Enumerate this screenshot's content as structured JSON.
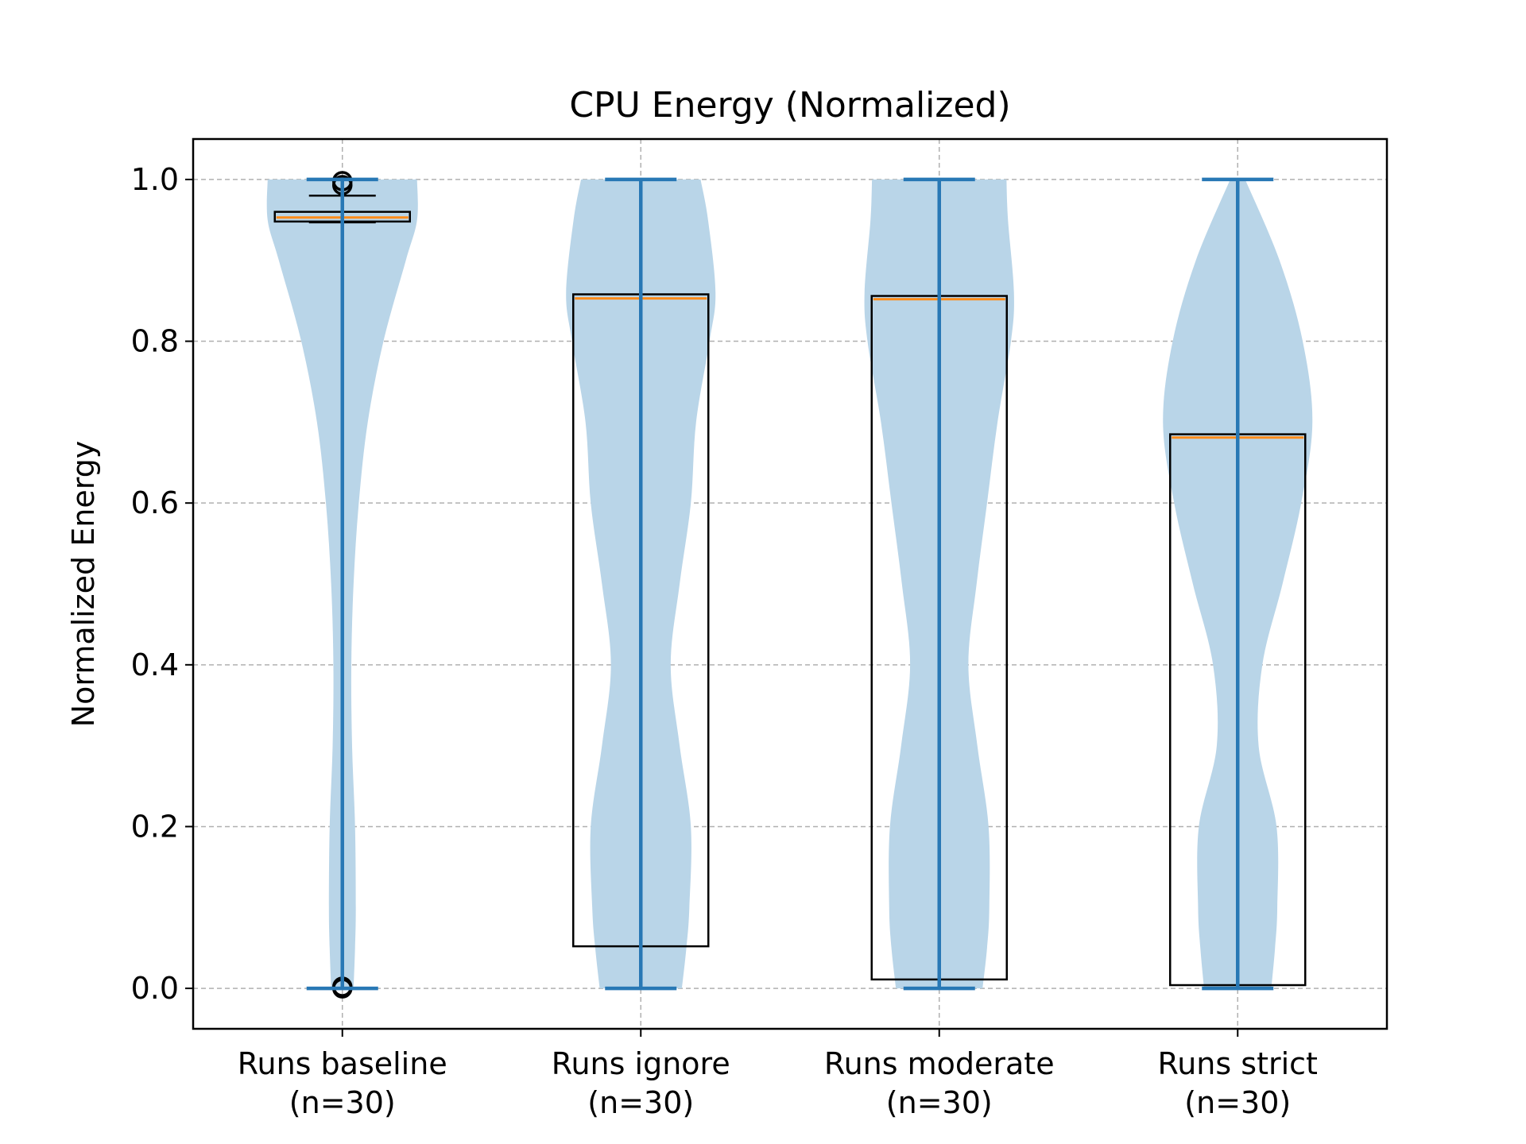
{
  "chart_data": {
    "type": "violin",
    "title": "CPU Energy (Normalized)",
    "xlabel": "",
    "ylabel": "Normalized Energy",
    "ylim": [
      -0.05,
      1.05
    ],
    "yticks": [
      0.0,
      0.2,
      0.4,
      0.6,
      0.8,
      1.0
    ],
    "ytick_labels": [
      "0.0",
      "0.2",
      "0.4",
      "0.6",
      "0.8",
      "1.0"
    ],
    "grid": true,
    "categories": [
      {
        "line1": "Runs baseline",
        "line2": "(n=30)"
      },
      {
        "line1": "Runs ignore",
        "line2": "(n=30)"
      },
      {
        "line1": "Runs moderate",
        "line2": "(n=30)"
      },
      {
        "line1": "Runs strict",
        "line2": "(n=30)"
      }
    ],
    "series": [
      {
        "min": 0.0,
        "max": 1.0,
        "median": 0.953,
        "q1": 0.948,
        "q3": 0.96,
        "whisker_low": 0.947,
        "whisker_high": 0.98,
        "outliers": [
          0.0,
          0.002,
          0.993,
          0.998
        ],
        "density": [
          [
            0.0,
            0.15
          ],
          [
            0.05,
            0.17
          ],
          [
            0.1,
            0.18
          ],
          [
            0.2,
            0.17
          ],
          [
            0.3,
            0.13
          ],
          [
            0.4,
            0.12
          ],
          [
            0.5,
            0.15
          ],
          [
            0.6,
            0.22
          ],
          [
            0.7,
            0.34
          ],
          [
            0.8,
            0.55
          ],
          [
            0.9,
            0.85
          ],
          [
            0.95,
            1.0
          ],
          [
            1.0,
            1.0
          ]
        ]
      },
      {
        "min": 0.0,
        "max": 1.0,
        "median": 0.853,
        "q1": 0.052,
        "q3": 0.858,
        "whisker_low": 0.0,
        "whisker_high": 1.0,
        "outliers": [],
        "density": [
          [
            0.0,
            0.55
          ],
          [
            0.05,
            0.61
          ],
          [
            0.1,
            0.65
          ],
          [
            0.2,
            0.67
          ],
          [
            0.3,
            0.52
          ],
          [
            0.4,
            0.4
          ],
          [
            0.5,
            0.52
          ],
          [
            0.6,
            0.67
          ],
          [
            0.7,
            0.74
          ],
          [
            0.8,
            0.92
          ],
          [
            0.86,
            1.0
          ],
          [
            0.95,
            0.9
          ],
          [
            1.0,
            0.8
          ]
        ]
      },
      {
        "min": 0.0,
        "max": 1.0,
        "median": 0.852,
        "q1": 0.011,
        "q3": 0.856,
        "whisker_low": 0.0,
        "whisker_high": 1.0,
        "outliers": [],
        "density": [
          [
            0.0,
            0.58
          ],
          [
            0.05,
            0.64
          ],
          [
            0.1,
            0.67
          ],
          [
            0.2,
            0.66
          ],
          [
            0.3,
            0.51
          ],
          [
            0.4,
            0.39
          ],
          [
            0.5,
            0.5
          ],
          [
            0.6,
            0.64
          ],
          [
            0.7,
            0.78
          ],
          [
            0.8,
            0.96
          ],
          [
            0.86,
            1.0
          ],
          [
            0.95,
            0.92
          ],
          [
            1.0,
            0.9
          ]
        ]
      },
      {
        "min": 0.0,
        "max": 1.0,
        "median": 0.681,
        "q1": 0.004,
        "q3": 0.685,
        "whisker_low": 0.0,
        "whisker_high": 1.0,
        "outliers": [],
        "density": [
          [
            0.0,
            0.45
          ],
          [
            0.05,
            0.5
          ],
          [
            0.1,
            0.53
          ],
          [
            0.2,
            0.52
          ],
          [
            0.3,
            0.28
          ],
          [
            0.4,
            0.33
          ],
          [
            0.5,
            0.6
          ],
          [
            0.6,
            0.85
          ],
          [
            0.7,
            1.0
          ],
          [
            0.8,
            0.87
          ],
          [
            0.9,
            0.56
          ],
          [
            1.0,
            0.1
          ]
        ]
      }
    ],
    "colors": {
      "violin_fill": "#b9d5e8",
      "violin_line": "#2878b5",
      "median": "#ff8c1a",
      "box_edge": "#000000",
      "grid": "#b0b0b0"
    }
  }
}
